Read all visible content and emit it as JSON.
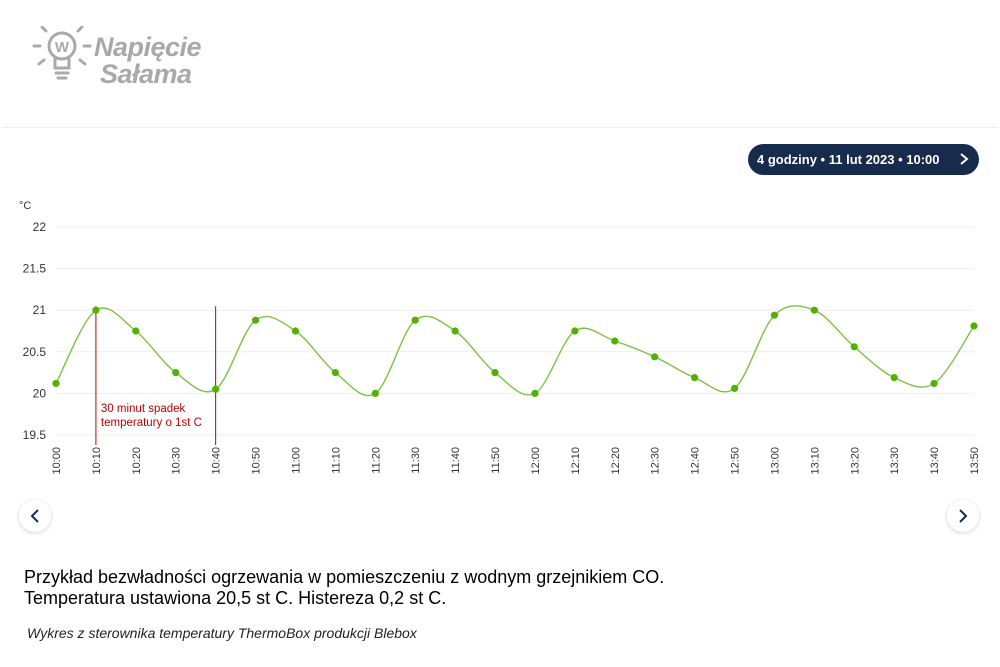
{
  "logo": {
    "line1": "Napięcie",
    "line2": "Sałama"
  },
  "range_pill": {
    "label": "4 godziny • 11 lut 2023 • 10:00"
  },
  "caption": {
    "line1": "Przykład bezwładności ogrzewania w pomieszczeniu z wodnym grzejnikiem CO.",
    "line2": "Temperatura ustawiona 20,5 st C. Histereza 0,2 st C."
  },
  "source_note": "Wykres z sterownika temperatury ThermoBox produkcji Blebox",
  "colors": {
    "series": "#52b100",
    "line": "#7cc243",
    "annotation": "#c00000",
    "pill_bg": "#172b4d",
    "grid": "#eeeeee"
  },
  "chart_data": {
    "type": "line",
    "ylabel": "°C",
    "ylim": [
      19.5,
      22
    ],
    "yticks": [
      19.5,
      20,
      20.5,
      21,
      21.5,
      22
    ],
    "grid": true,
    "x": [
      "10:00",
      "10:10",
      "10:20",
      "10:30",
      "10:40",
      "10:50",
      "11:00",
      "11:10",
      "11:20",
      "11:30",
      "11:40",
      "11:50",
      "12:00",
      "12:10",
      "12:20",
      "12:30",
      "12:40",
      "12:50",
      "13:00",
      "13:10",
      "13:20",
      "13:30",
      "13:40",
      "13:50"
    ],
    "series": [
      {
        "values": [
          20.12,
          21.0,
          20.75,
          20.25,
          20.05,
          20.88,
          20.75,
          20.25,
          20.0,
          20.88,
          20.75,
          20.25,
          20.0,
          20.75,
          20.63,
          20.44,
          20.19,
          20.06,
          20.94,
          21.0,
          20.56,
          20.19,
          20.12,
          20.81
        ]
      }
    ],
    "annotations": [
      {
        "x": "10:10",
        "text": "30 minut spadek"
      },
      {
        "x": "10:40",
        "text": "temperatury o 1st C"
      }
    ]
  }
}
